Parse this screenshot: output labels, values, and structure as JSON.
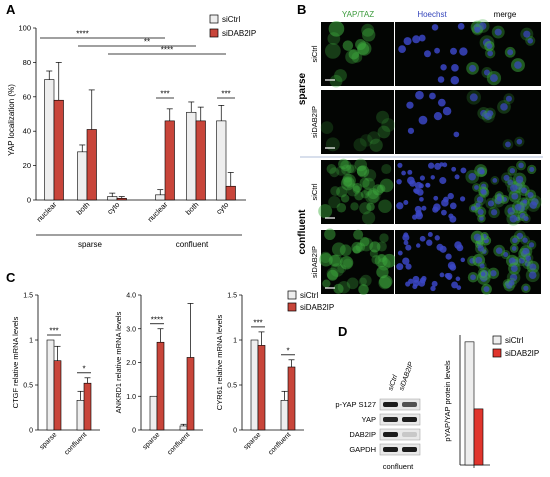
{
  "panels": {
    "A": "A",
    "B": "B",
    "C": "C",
    "D": "D"
  },
  "colors": {
    "ctrl": "#eeeeee",
    "dab": "#c8453a",
    "dab_d": "#e0352d",
    "yap_green": "#3fae3f",
    "hoechst_blue": "#3b47c4",
    "hoechst_label": "#3344bb",
    "yap_label": "#3b9a3b"
  },
  "legend": {
    "ctrl": "siCtrl",
    "dab": "siDAB2IP"
  },
  "chart_data": [
    {
      "panel": "A",
      "type": "bar",
      "ylabel": "YAP localization (%)",
      "ylim": [
        0,
        100
      ],
      "yticks": [
        "0",
        "20",
        "40",
        "60",
        "80",
        "100"
      ],
      "categories": [
        "nuclear",
        "both",
        "cyto",
        "nuclear",
        "both",
        "cyto"
      ],
      "groups": [
        "sparse",
        "confluent"
      ],
      "series": [
        {
          "name": "siCtrl",
          "values": [
            70,
            28,
            2,
            3,
            51,
            46
          ],
          "err": [
            5,
            4,
            2,
            3,
            6,
            9
          ]
        },
        {
          "name": "siDAB2IP",
          "values": [
            58,
            41,
            1,
            46,
            46,
            8
          ],
          "err": [
            22,
            23,
            1,
            7,
            8,
            8
          ]
        }
      ],
      "significance": [
        {
          "label": "****",
          "from": 0,
          "to": 3
        },
        {
          "label": "**",
          "from": 1,
          "to": 4
        },
        {
          "label": "****",
          "from": 2,
          "to": 5
        },
        {
          "label": "***",
          "from": 3,
          "to": 3
        },
        {
          "label": "***",
          "from": 5,
          "to": 5
        }
      ]
    },
    {
      "panel": "C",
      "type": "bar",
      "ylabel": "CTGF relative mRNA levels",
      "ylim": [
        0,
        1.5
      ],
      "yticks": [
        "0",
        "0.5",
        "1",
        "1.5"
      ],
      "categories": [
        "sparse",
        "confluent"
      ],
      "series": [
        {
          "name": "siCtrl",
          "values": [
            1.0,
            0.33
          ],
          "err": [
            0,
            0.1
          ]
        },
        {
          "name": "siDAB2IP",
          "values": [
            0.77,
            0.52
          ],
          "err": [
            0.16,
            0.06
          ]
        }
      ],
      "significance": [
        {
          "label": "***",
          "cat": 0
        },
        {
          "label": "*",
          "cat": 1
        }
      ]
    },
    {
      "panel": "C",
      "type": "bar",
      "ylabel": "ANKRD1 relative mRNA levels",
      "ylim": [
        0,
        4.0
      ],
      "yticks": [
        "0",
        "1.0",
        "2.0",
        "3.0",
        "4.0"
      ],
      "categories": [
        "sparse",
        "confluent"
      ],
      "series": [
        {
          "name": "siCtrl",
          "values": [
            1.0,
            0.12
          ],
          "err": [
            0,
            0.05
          ]
        },
        {
          "name": "siDAB2IP",
          "values": [
            2.6,
            2.15
          ],
          "err": [
            0.4,
            1.6
          ]
        }
      ],
      "significance": [
        {
          "label": "****",
          "cat": 0
        }
      ]
    },
    {
      "panel": "C",
      "type": "bar",
      "ylabel": "CYR61 relative mRNA levels",
      "ylim": [
        0,
        1.5
      ],
      "yticks": [
        "0",
        "0.5",
        "1",
        "1.5"
      ],
      "categories": [
        "sparse",
        "confluent"
      ],
      "series": [
        {
          "name": "siCtrl",
          "values": [
            1.0,
            0.33
          ],
          "err": [
            0,
            0.1
          ]
        },
        {
          "name": "siDAB2IP",
          "values": [
            0.94,
            0.7
          ],
          "err": [
            0.15,
            0.08
          ]
        }
      ],
      "significance": [
        {
          "label": "***",
          "cat": 0
        },
        {
          "label": "*",
          "cat": 1
        }
      ]
    },
    {
      "panel": "D",
      "type": "bar",
      "ylabel": "pYAP/YAP protein levels",
      "ylim": [
        0,
        1.9
      ],
      "categories": [
        "confluent"
      ],
      "series": [
        {
          "name": "siCtrl",
          "values": [
            1.8
          ]
        },
        {
          "name": "siDAB2IP",
          "values": [
            0.82
          ]
        }
      ]
    }
  ],
  "microscopy": {
    "columns": [
      "YAP/TAZ",
      "Hoechst",
      "merge"
    ],
    "conditions": [
      "sparse",
      "confluent"
    ],
    "rows": [
      {
        "label": "siCtrl",
        "intensity": 0.55,
        "density": 14
      },
      {
        "label": "siDAB2IP",
        "intensity": 0.3,
        "density": 9
      },
      {
        "label": "siCtrl",
        "intensity": 0.5,
        "density": 42
      },
      {
        "label": "siDAB2IP",
        "intensity": 0.55,
        "density": 38
      }
    ]
  },
  "western": {
    "lane_labels": [
      "siCtrl",
      "siDAB2IP"
    ],
    "bands": [
      {
        "label": "p-YAP S127",
        "strength": [
          0.95,
          0.7
        ]
      },
      {
        "label": "YAP",
        "strength": [
          0.9,
          0.95
        ]
      },
      {
        "label": "DAB2IP",
        "strength": [
          0.95,
          0.15
        ]
      },
      {
        "label": "GAPDH",
        "strength": [
          0.95,
          0.95
        ]
      }
    ],
    "footer": "confluent"
  }
}
